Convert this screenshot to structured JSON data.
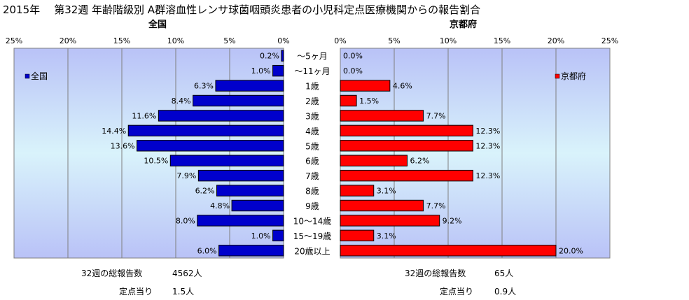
{
  "page_title": {
    "year": "2015年",
    "text": "第32週 年齢階級別 A群溶血性レンサ球菌咽頭炎患者の小児科定点医療機関からの報告割合"
  },
  "chart_data": [
    {
      "type": "bar",
      "title": "全国",
      "orientation": "horizontal-reversed",
      "categories": [
        "～5ヶ月",
        "～11ヶ月",
        "1歳",
        "2歳",
        "3歳",
        "4歳",
        "5歳",
        "6歳",
        "7歳",
        "8歳",
        "9歳",
        "10～14歳",
        "15～19歳",
        "20歳以上"
      ],
      "series": [
        {
          "name": "全国",
          "color": "#0000CC",
          "values": [
            0.2,
            1.0,
            6.3,
            8.4,
            11.6,
            14.4,
            13.6,
            10.5,
            7.9,
            6.2,
            4.8,
            8.0,
            1.0,
            6.0
          ]
        }
      ],
      "value_labels": [
        "0.2%",
        "1.0%",
        "6.3%",
        "8.4%",
        "11.6%",
        "14.4%",
        "13.6%",
        "10.5%",
        "7.9%",
        "6.2%",
        "4.8%",
        "8.0%",
        "1.0%",
        "6.0%"
      ],
      "xlim": [
        0,
        25
      ],
      "xticks": [
        "25%",
        "20%",
        "15%",
        "10%",
        "5%",
        "0%"
      ],
      "grid": true,
      "legend": "top-left"
    },
    {
      "type": "bar",
      "title": "京都府",
      "orientation": "horizontal",
      "categories": [
        "～5ヶ月",
        "～11ヶ月",
        "1歳",
        "2歳",
        "3歳",
        "4歳",
        "5歳",
        "6歳",
        "7歳",
        "8歳",
        "9歳",
        "10～14歳",
        "15～19歳",
        "20歳以上"
      ],
      "series": [
        {
          "name": "京都府",
          "color": "#FF0000",
          "values": [
            0.0,
            0.0,
            4.6,
            1.5,
            7.7,
            12.3,
            12.3,
            6.2,
            12.3,
            3.1,
            7.7,
            9.2,
            3.1,
            20.0
          ]
        }
      ],
      "value_labels": [
        "0.0%",
        "0.0%",
        "4.6%",
        "1.5%",
        "7.7%",
        "12.3%",
        "12.3%",
        "6.2%",
        "12.3%",
        "3.1%",
        "7.7%",
        "9.2%",
        "3.1%",
        "20.0%"
      ],
      "xlim": [
        0,
        25
      ],
      "xticks": [
        "0%",
        "5%",
        "10%",
        "15%",
        "20%",
        "25%"
      ],
      "grid": true,
      "legend": "top-right"
    }
  ],
  "summary": {
    "national_total_label": "32週の総報告数",
    "national_total": "4562人",
    "national_per_label": "定点当り",
    "national_per": "1.5人",
    "kyoto_total_label": "32週の総報告数",
    "kyoto_total": "65人",
    "kyoto_per_label": "定点当り",
    "kyoto_per": "0.9人"
  }
}
